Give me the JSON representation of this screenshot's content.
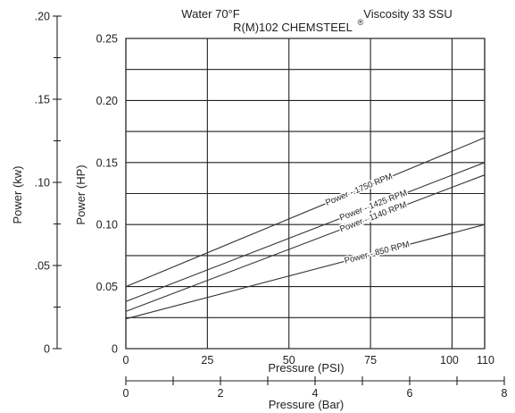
{
  "chart_data": {
    "type": "line",
    "title": "R(M)102 CHEMSTEEL",
    "title_mark": "®",
    "conditions": {
      "fluid": "Water 70°F",
      "viscosity": "Viscosity 33 SSU"
    },
    "xlabel": "Pressure (PSI)",
    "ylabel": "Power (HP)",
    "xlim": [
      0,
      110
    ],
    "ylim": [
      0,
      0.25
    ],
    "x_ticks": [
      0,
      25,
      50,
      75,
      100,
      110
    ],
    "y_ticks": [
      0,
      0.05,
      0.1,
      0.15,
      0.2,
      0.25
    ],
    "y_tick_labels": [
      "0",
      "0.05",
      "0.10",
      "0.15",
      "0.20",
      "0.25"
    ],
    "y_minor_gridlines": [
      0.025,
      0.075,
      0.125,
      0.175,
      0.225
    ],
    "grid": true,
    "secondary_y": {
      "label": "Power (kw)",
      "range": [
        0,
        0.2
      ],
      "ticks": [
        0,
        0.05,
        0.1,
        0.15,
        0.2
      ],
      "tick_labels": [
        "0",
        ".05",
        ".10",
        ".15",
        ".20"
      ]
    },
    "secondary_x": {
      "label": "Pressure (Bar)",
      "range": [
        0,
        8
      ],
      "ticks": [
        0,
        2,
        4,
        6,
        8
      ],
      "minor_ticks": [
        1,
        3,
        5,
        7
      ]
    },
    "series": [
      {
        "name": "Power - 1750 RPM",
        "x": [
          0,
          110
        ],
        "y": [
          0.05,
          0.17
        ],
        "label_at": 0.65
      },
      {
        "name": "Power - 1425 RPM",
        "x": [
          0,
          110
        ],
        "y": [
          0.038,
          0.15
        ],
        "label_at": 0.69
      },
      {
        "name": "Power - 1140 RPM",
        "x": [
          0,
          110
        ],
        "y": [
          0.03,
          0.14
        ],
        "label_at": 0.69
      },
      {
        "name": "Power - 850 RPM",
        "x": [
          0,
          110
        ],
        "y": [
          0.024,
          0.1
        ],
        "label_at": 0.7
      }
    ]
  }
}
